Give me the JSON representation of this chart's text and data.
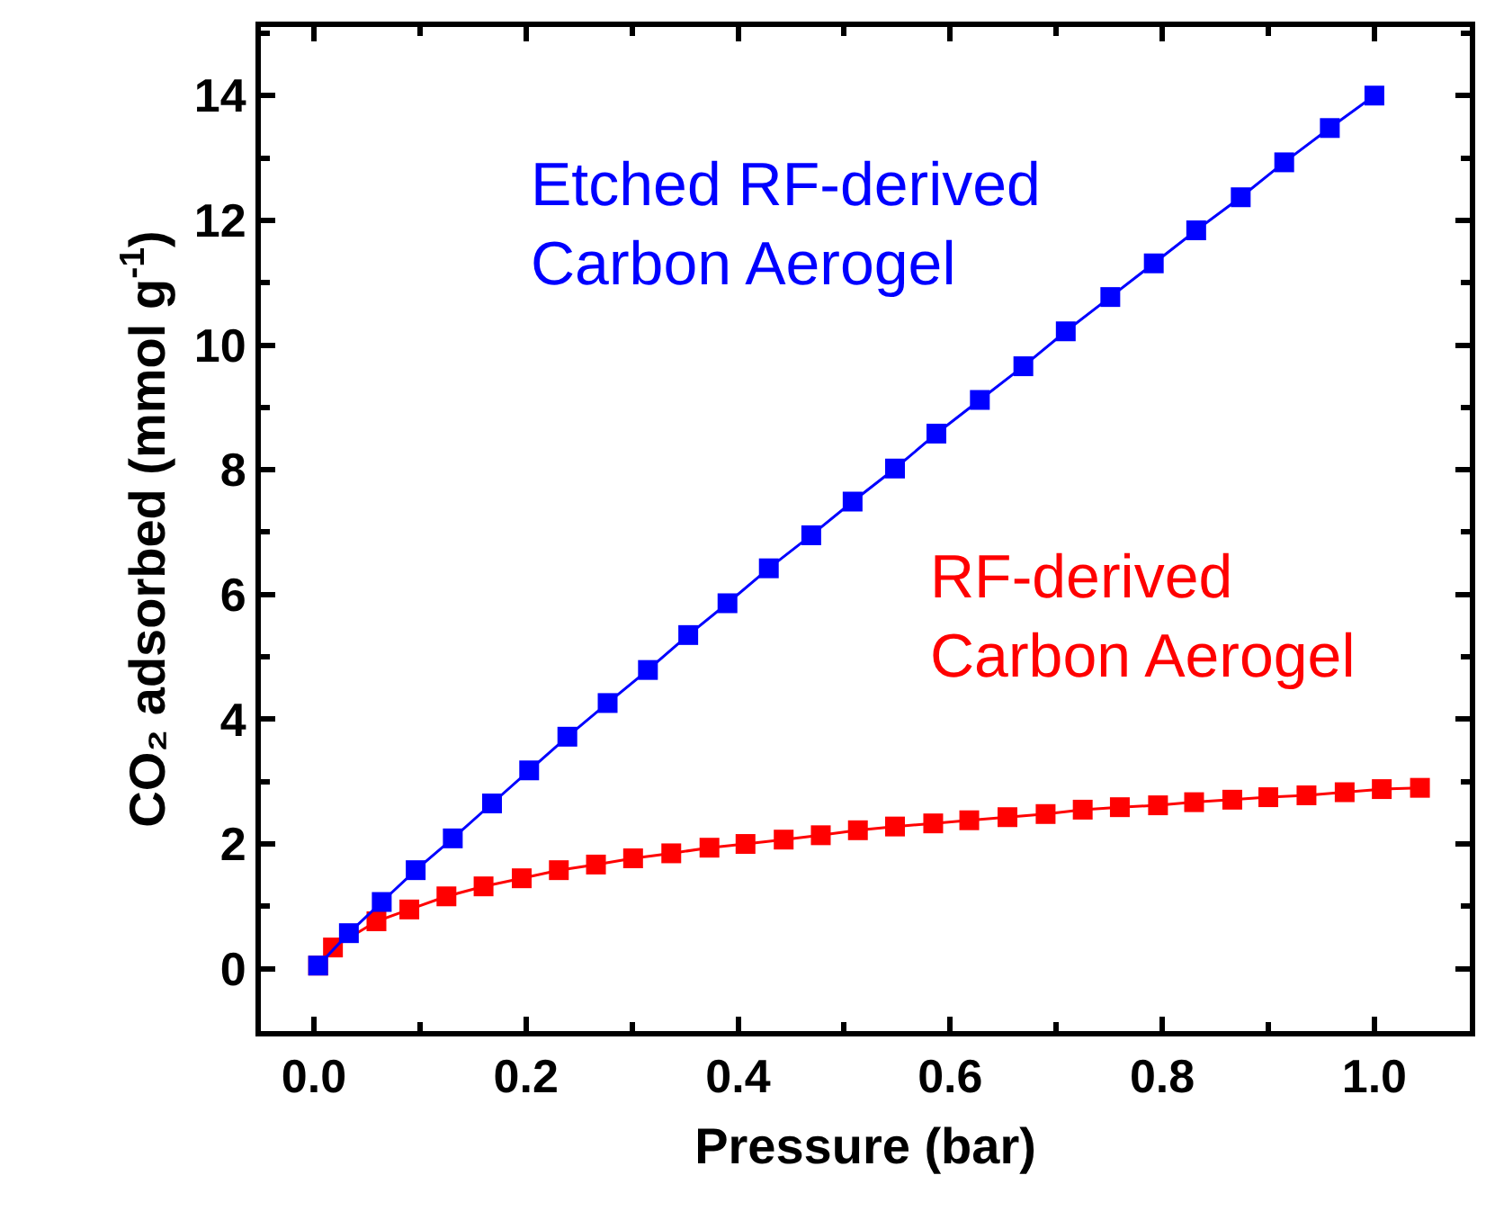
{
  "chart_data": {
    "type": "line",
    "xlabel": "Pressure (bar)",
    "ylabel": "CO₂ adsorbed (mmol g$^{-1}$)",
    "xlim": [
      -0.05,
      1.09
    ],
    "ylim": [
      -1,
      15.1
    ],
    "xticks": [
      {
        "value": 0,
        "label": "0.0"
      },
      {
        "value": 0.2,
        "label": "0.2"
      },
      {
        "value": 0.4,
        "label": "0.4"
      },
      {
        "value": 0.6,
        "label": "0.6"
      },
      {
        "value": 0.8,
        "label": "0.8"
      },
      {
        "value": 1.0,
        "label": "1.0"
      }
    ],
    "yticks": [
      0,
      2,
      4,
      6,
      8,
      10,
      12,
      14
    ],
    "legend": false,
    "marker": "square",
    "line_style": "solid",
    "series": [
      {
        "name": "Etched RF-derived Carbon Aerogel",
        "color": "#0000ff",
        "x": [
          0.004,
          0.033,
          0.064,
          0.096,
          0.131,
          0.168,
          0.203,
          0.239,
          0.277,
          0.315,
          0.353,
          0.39,
          0.429,
          0.469,
          0.508,
          0.548,
          0.587,
          0.628,
          0.669,
          0.709,
          0.751,
          0.792,
          0.832,
          0.874,
          0.915,
          0.958,
          1.0
        ],
        "values": [
          0.05,
          0.57,
          1.07,
          1.58,
          2.09,
          2.65,
          3.18,
          3.72,
          4.26,
          4.79,
          5.35,
          5.86,
          6.42,
          6.95,
          7.49,
          8.02,
          8.58,
          9.12,
          9.66,
          10.22,
          10.77,
          11.31,
          11.84,
          12.37,
          12.93,
          13.48,
          14.0
        ]
      },
      {
        "name": "RF-derived Carbon Aerogel",
        "color": "#ff0000",
        "x": [
          0.004,
          0.018,
          0.059,
          0.09,
          0.125,
          0.16,
          0.196,
          0.231,
          0.266,
          0.301,
          0.337,
          0.373,
          0.407,
          0.443,
          0.478,
          0.513,
          0.548,
          0.584,
          0.618,
          0.654,
          0.69,
          0.725,
          0.76,
          0.796,
          0.83,
          0.866,
          0.9,
          0.936,
          0.972,
          1.007,
          1.043
        ],
        "values": [
          0.05,
          0.34,
          0.76,
          0.95,
          1.16,
          1.32,
          1.45,
          1.58,
          1.67,
          1.77,
          1.85,
          1.94,
          2.0,
          2.07,
          2.14,
          2.22,
          2.28,
          2.33,
          2.38,
          2.43,
          2.48,
          2.55,
          2.59,
          2.62,
          2.67,
          2.71,
          2.75,
          2.78,
          2.83,
          2.88,
          2.9
        ]
      }
    ]
  }
}
